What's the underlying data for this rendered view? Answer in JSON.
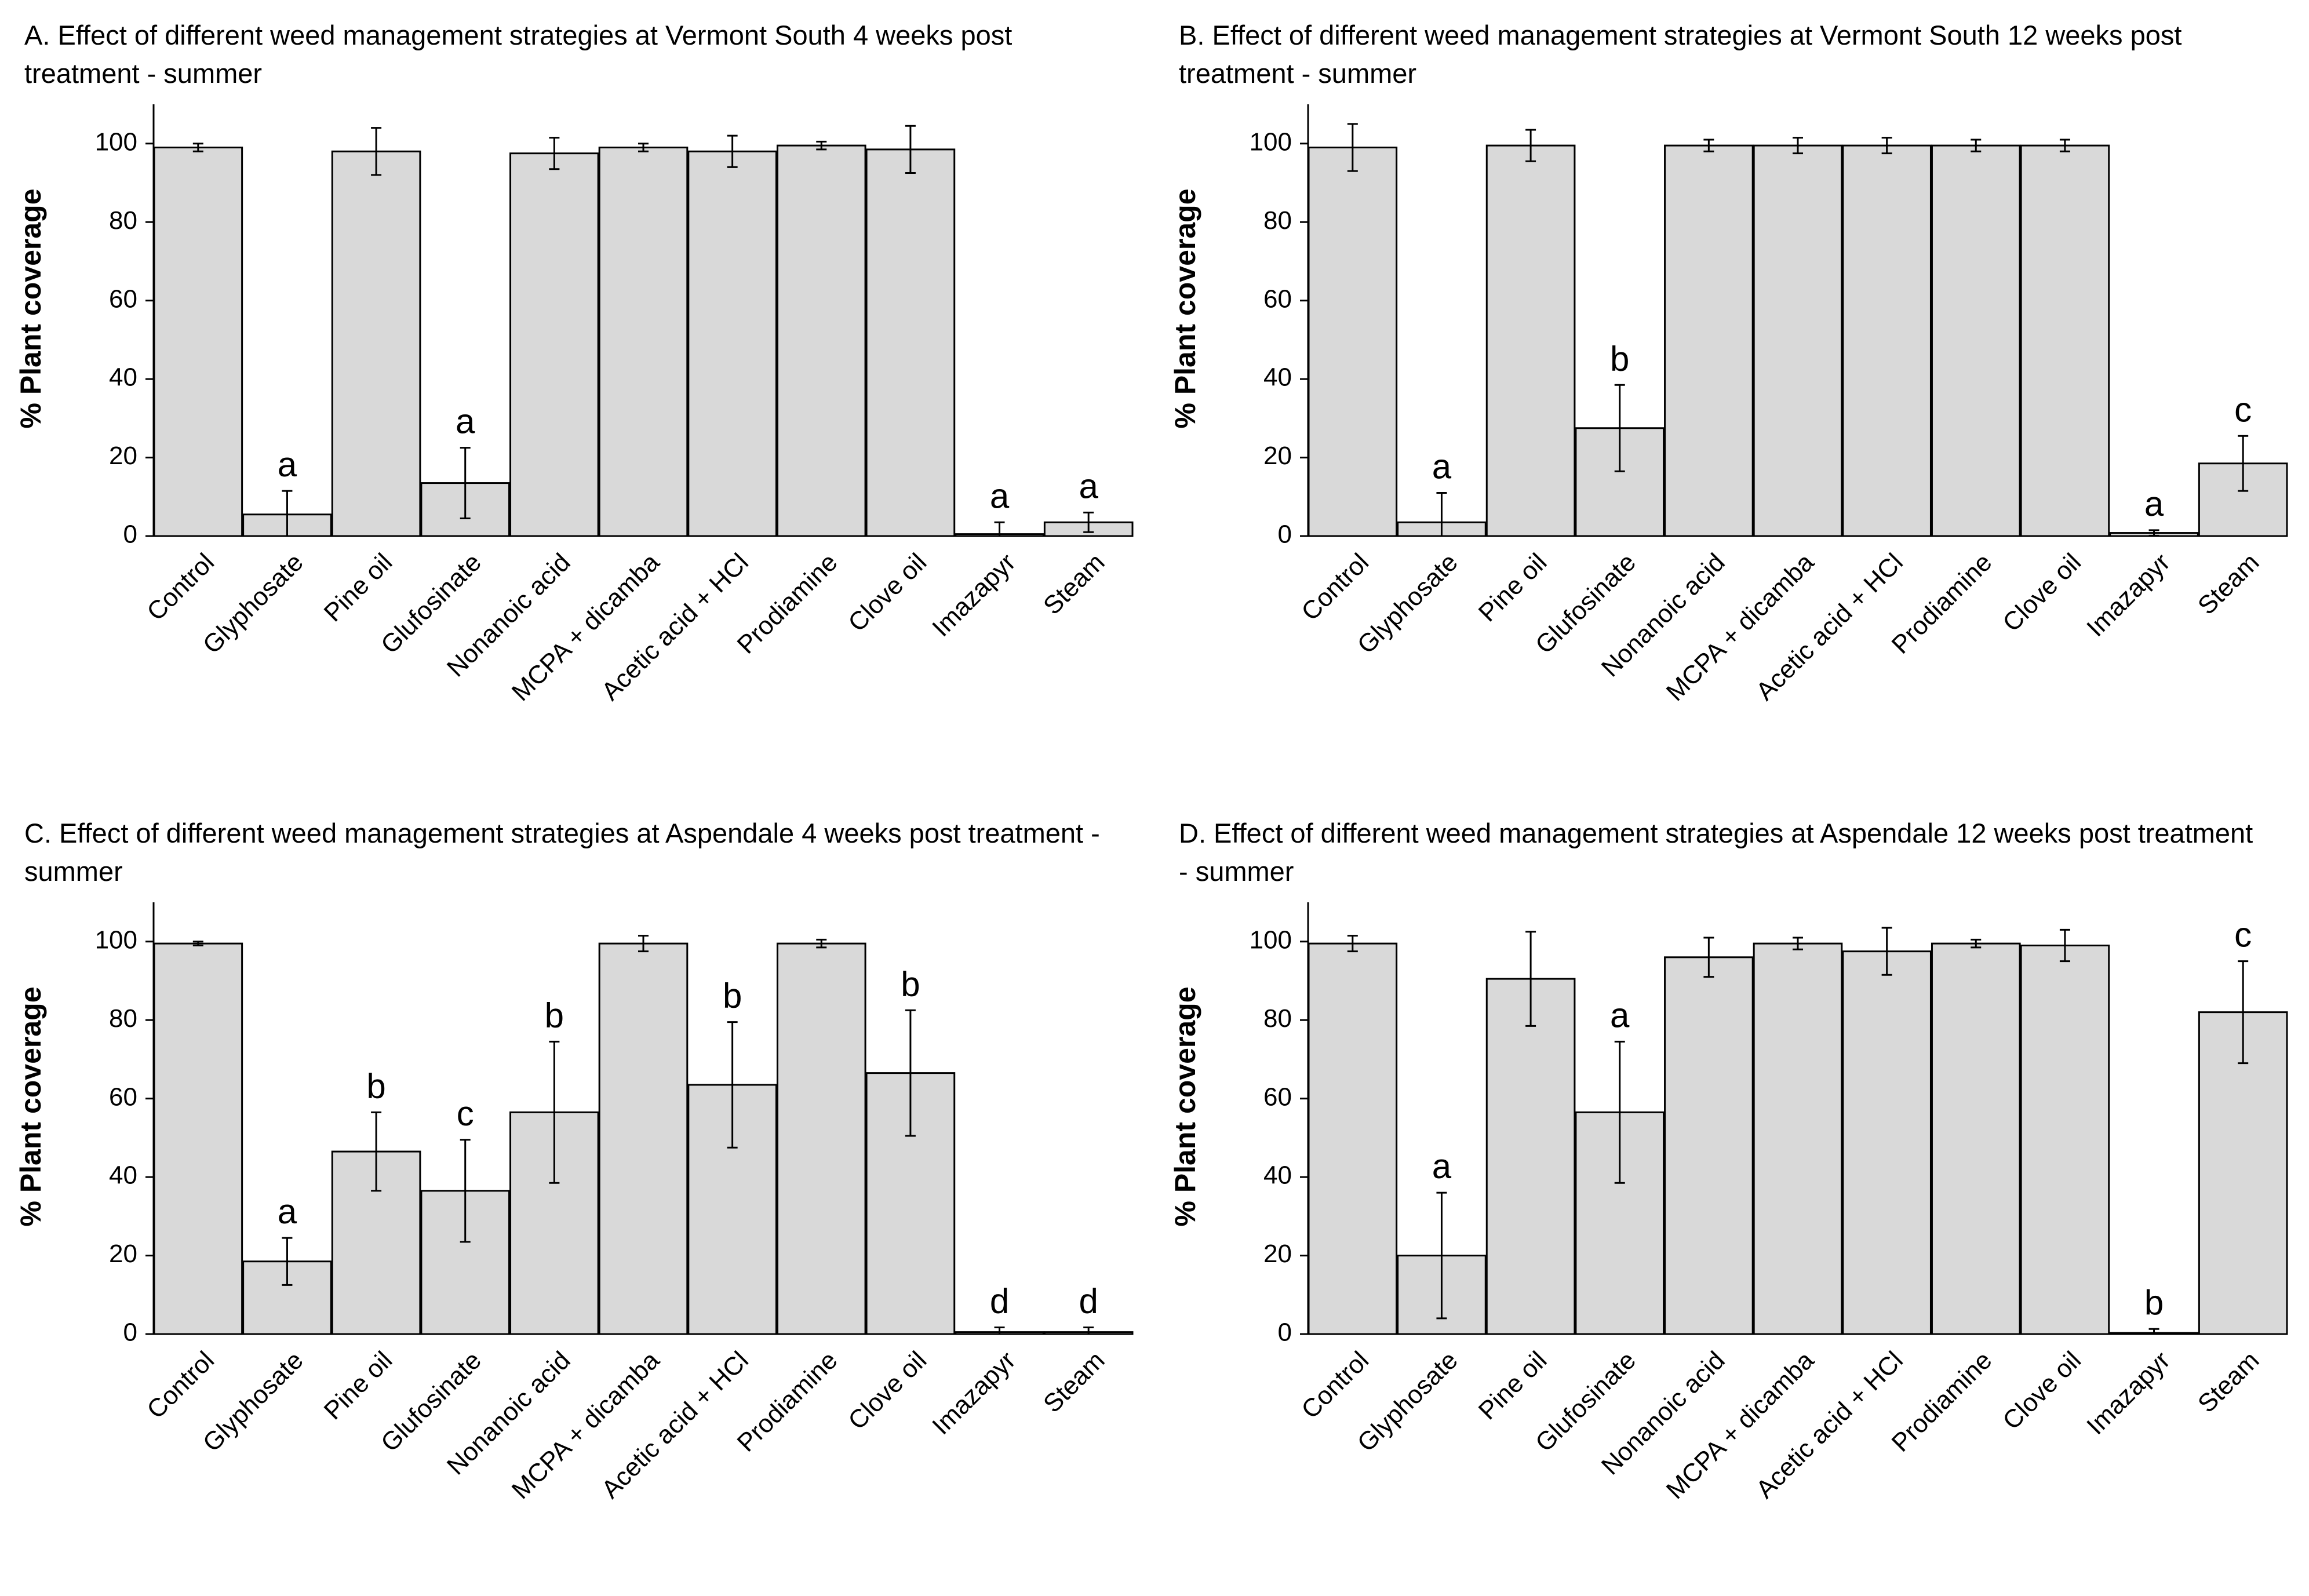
{
  "chart_data": [
    {
      "type": "bar",
      "title": "A. Effect of different weed management strategies at Vermont South 4 weeks post treatment - summer",
      "xlabel": "",
      "ylabel": "% Plant coverage",
      "ylim": [
        0,
        110
      ],
      "yticks": [
        0,
        20,
        40,
        60,
        80,
        100
      ],
      "categories": [
        "Control",
        "Glyphosate",
        "Pine oil",
        "Glufosinate",
        "Nonanoic acid",
        "MCPA + dicamba",
        "Acetic acid + HCl",
        "Prodiamine",
        "Clove oil",
        "Imazapyr",
        "Steam"
      ],
      "values": [
        99,
        5.5,
        98,
        13.5,
        97.5,
        99,
        98,
        99.5,
        98.5,
        0.5,
        3.5
      ],
      "errors": [
        1,
        6,
        6,
        9,
        4,
        1,
        4,
        1,
        6,
        3,
        2.5
      ],
      "letters": [
        "",
        "a",
        "",
        "a",
        "",
        "",
        "",
        "",
        "",
        "a",
        "a"
      ]
    },
    {
      "type": "bar",
      "title": "B. Effect of different weed management strategies at Vermont South 12 weeks post treatment - summer",
      "xlabel": "",
      "ylabel": "% Plant coverage",
      "ylim": [
        0,
        110
      ],
      "yticks": [
        0,
        20,
        40,
        60,
        80,
        100
      ],
      "categories": [
        "Control",
        "Glyphosate",
        "Pine oil",
        "Glufosinate",
        "Nonanoic acid",
        "MCPA + dicamba",
        "Acetic acid + HCl",
        "Prodiamine",
        "Clove oil",
        "Imazapyr",
        "Steam"
      ],
      "values": [
        99,
        3.5,
        99.5,
        27.5,
        99.5,
        99.5,
        99.5,
        99.5,
        99.5,
        0.8,
        18.5
      ],
      "errors": [
        6,
        7.5,
        4,
        11,
        1.5,
        2,
        2,
        1.5,
        1.5,
        0.7,
        7
      ],
      "letters": [
        "",
        "a",
        "",
        "b",
        "",
        "",
        "",
        "",
        "",
        "a",
        "c"
      ]
    },
    {
      "type": "bar",
      "title": "C. Effect of different weed management strategies at Aspendale 4 weeks post treatment - summer",
      "xlabel": "",
      "ylabel": "% Plant coverage",
      "ylim": [
        0,
        110
      ],
      "yticks": [
        0,
        20,
        40,
        60,
        80,
        100
      ],
      "categories": [
        "Control",
        "Glyphosate",
        "Pine oil",
        "Glufosinate",
        "Nonanoic acid",
        "MCPA + dicamba",
        "Acetic acid + HCl",
        "Prodiamine",
        "Clove oil",
        "Imazapyr",
        "Steam"
      ],
      "values": [
        99.5,
        18.5,
        46.5,
        36.5,
        56.5,
        99.5,
        63.5,
        99.5,
        66.5,
        0.5,
        0.5
      ],
      "errors": [
        0.5,
        6,
        10,
        13,
        18,
        2,
        16,
        1,
        16,
        1.2,
        1.2
      ],
      "letters": [
        "",
        "a",
        "b",
        "c",
        "b",
        "",
        "b",
        "",
        "b",
        "d",
        "d"
      ]
    },
    {
      "type": "bar",
      "title": "D. Effect of different weed management strategies at Aspendale 12 weeks post treatment - summer",
      "xlabel": "",
      "ylabel": "% Plant coverage",
      "ylim": [
        0,
        110
      ],
      "yticks": [
        0,
        20,
        40,
        60,
        80,
        100
      ],
      "categories": [
        "Control",
        "Glyphosate",
        "Pine oil",
        "Glufosinate",
        "Nonanoic acid",
        "MCPA + dicamba",
        "Acetic acid + HCl",
        "Prodiamine",
        "Clove oil",
        "Imazapyr",
        "Steam"
      ],
      "values": [
        99.5,
        20,
        90.5,
        56.5,
        96,
        99.5,
        97.5,
        99.5,
        99,
        0.3,
        82
      ],
      "errors": [
        2,
        16,
        12,
        18,
        5,
        1.5,
        6,
        1,
        4,
        1,
        13
      ],
      "letters": [
        "",
        "a",
        "",
        "a",
        "",
        "",
        "",
        "",
        "",
        "b",
        "c"
      ]
    }
  ]
}
